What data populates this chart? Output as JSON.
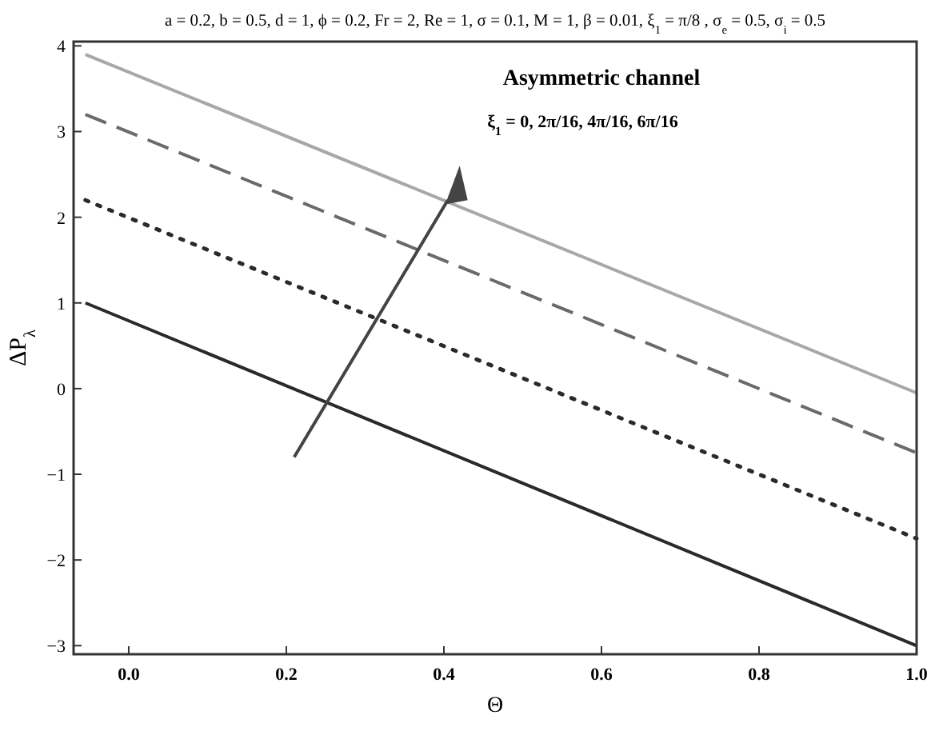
{
  "chart_data": {
    "type": "line",
    "title": "a = 0.2, b = 0.5, d = 1, ϕ = 0.2, Fr = 2, Re = 1, σ = 0.1, M = 1, β = 0.01, ξ$_{1}$ = π/8 , σ$_{e}$ = 0.5, σ$_{i}$ = 0.5",
    "xlabel": "Θ",
    "ylabel": "ΔP$_{λ}$",
    "x": [
      -0.055,
      1.0
    ],
    "series": [
      {
        "color": "#2a2a2a",
        "values": [
          1.0,
          -3.0
        ],
        "line_style": "solid"
      },
      {
        "color": "#2a2a2a",
        "values": [
          2.2,
          -1.75
        ],
        "line_style": "dotted"
      },
      {
        "color": "#6a6a6a",
        "values": [
          3.2,
          -0.75
        ],
        "line_style": "dashed"
      },
      {
        "color": "#a8a8a8",
        "values": [
          3.9,
          -0.05
        ],
        "line_style": "solid"
      }
    ],
    "annotations": [
      "Asymmetric channel",
      "ξ$_{1}$ = 0, 2π/16, 4π/16, 6π/16"
    ],
    "xlim": [
      -0.07,
      1.0
    ],
    "xticks": [
      {
        "value": 0,
        "label": "0.0"
      },
      {
        "value": 0.2,
        "label": "0.2"
      },
      {
        "value": 0.4,
        "label": "0.4"
      },
      {
        "value": 0.6,
        "label": "0.6"
      },
      {
        "value": 0.8,
        "label": "0.8"
      },
      {
        "value": 1,
        "label": "1.0"
      }
    ],
    "ylim": [
      -3.1,
      4.05
    ],
    "yticks": [
      {
        "value": -3,
        "label": "−3"
      },
      {
        "value": -2,
        "label": "−2"
      },
      {
        "value": -1,
        "label": "−1"
      },
      0,
      1,
      2,
      3,
      4
    ],
    "grid": false,
    "marker": "none"
  }
}
